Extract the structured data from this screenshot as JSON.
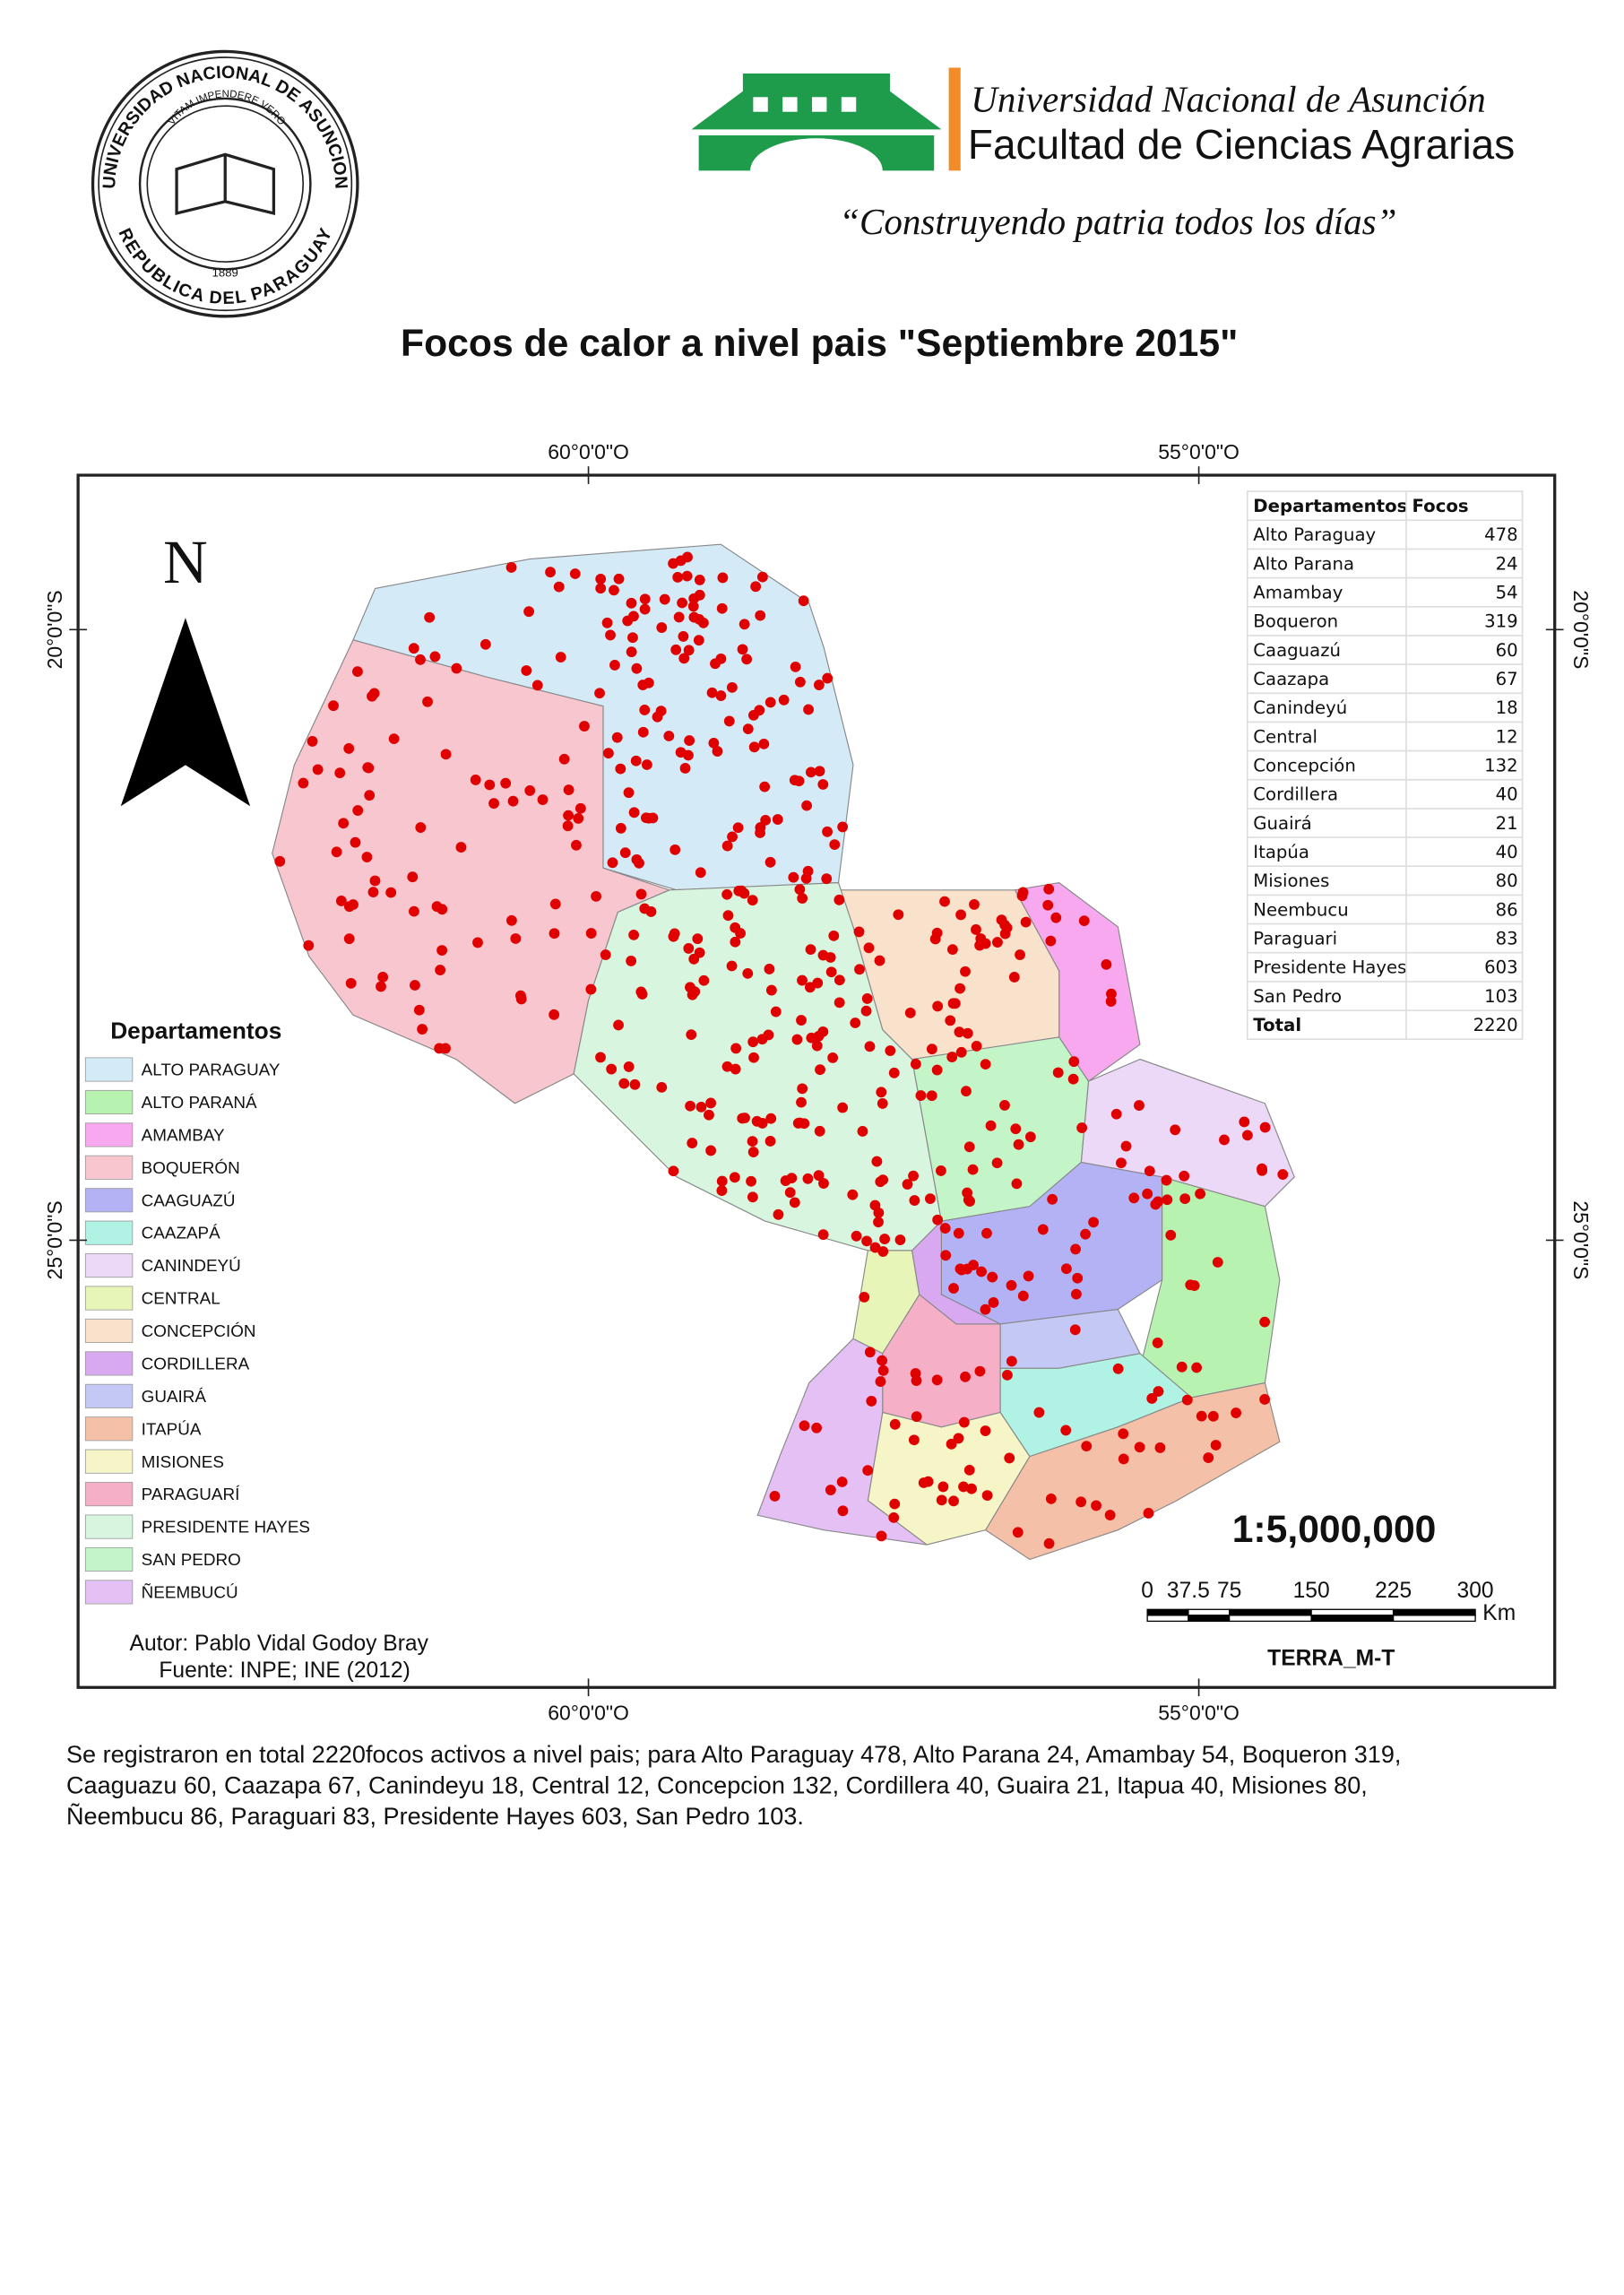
{
  "header": {
    "seal": {
      "top": "UNIVERSIDAD NACIONAL DE ASUNCION",
      "motto": "VITAM IMPENDERE VERO",
      "year": "1889",
      "bottom": "REPUBLICA DEL PARAGUAY"
    },
    "university": "Universidad Nacional de Asunción",
    "faculty": "Facultad de Ciencias Agrarias",
    "slogan": "“Construyendo patria todos los días”"
  },
  "title": "Focos de calor a nivel pais \"Septiembre 2015\"",
  "map": {
    "graticule": {
      "longitudes": [
        "60°0'0\"O",
        "55°0'0\"O"
      ],
      "latitudes": [
        "20°0'0\"S",
        "25°0'0\"S"
      ]
    },
    "north": "N",
    "table": {
      "columns": [
        "Departamentos",
        "Focos"
      ],
      "rows": [
        [
          "Alto Paraguay",
          478
        ],
        [
          "Alto Parana",
          24
        ],
        [
          "Amambay",
          54
        ],
        [
          "Boqueron",
          319
        ],
        [
          "Caaguazú",
          60
        ],
        [
          "Caazapa",
          67
        ],
        [
          "Canindeyú",
          18
        ],
        [
          "Central",
          12
        ],
        [
          "Concepción",
          132
        ],
        [
          "Cordillera",
          40
        ],
        [
          "Guairá",
          21
        ],
        [
          "Itapúa",
          40
        ],
        [
          "Misiones",
          80
        ],
        [
          "Neembucu",
          86
        ],
        [
          "Paraguari",
          83
        ],
        [
          "Presidente Hayes",
          603
        ],
        [
          "San Pedro",
          103
        ]
      ],
      "total": [
        "Total",
        2220
      ]
    },
    "legend": {
      "title": "Departamentos",
      "items": [
        {
          "label": "ALTO PARAGUAY",
          "color": "#d4eaf7"
        },
        {
          "label": "ALTO PARANÁ",
          "color": "#b8f2b0"
        },
        {
          "label": "AMAMBAY",
          "color": "#f7a8ee"
        },
        {
          "label": "BOQUERÓN",
          "color": "#f7c6cf"
        },
        {
          "label": "CAAGUAZÚ",
          "color": "#b2b2f5"
        },
        {
          "label": "CAAZAPÁ",
          "color": "#b0f2e4"
        },
        {
          "label": "CANINDEYÚ",
          "color": "#ecd8f7"
        },
        {
          "label": "CENTRAL",
          "color": "#e8f5b8"
        },
        {
          "label": "CONCEPCIÓN",
          "color": "#f9e2cc"
        },
        {
          "label": "CORDILLERA",
          "color": "#d8a8f0"
        },
        {
          "label": "GUAIRÁ",
          "color": "#c4c8f5"
        },
        {
          "label": "ITAPÚA",
          "color": "#f5c0a8"
        },
        {
          "label": "MISIONES",
          "color": "#f5f5c8"
        },
        {
          "label": "PARAGUARÍ",
          "color": "#f5b0c8"
        },
        {
          "label": "PRESIDENTE HAYES",
          "color": "#d8f5e0"
        },
        {
          "label": "SAN PEDRO",
          "color": "#c4f5c8"
        },
        {
          "label": "ÑEEMBUCÚ",
          "color": "#e4c0f5"
        }
      ]
    },
    "credits": {
      "author": "Autor: Pablo Vidal Godoy Bray",
      "source": "Fuente: INPE; INE (2012)"
    },
    "scale": "1:5,000,000",
    "scale_bar": {
      "ticks": [
        0,
        37.5,
        75,
        150,
        225,
        300
      ],
      "unit": "Km"
    },
    "imagery": "TERRA_M-T"
  },
  "summary": [
    "Se registraron en total 2220focos activos a nivel pais; para Alto Paraguay 478, Alto Parana 24, Amambay 54, Boqueron 319,",
    "Caaguazu 60, Caazapa 67, Canindeyu 18, Central 12, Concepcion 132, Cordillera 40, Guaira 21, Itapua 40, Misiones 80,",
    "Ñeembucu 86, Paraguari 83, Presidente Hayes 603, San Pedro 103."
  ]
}
